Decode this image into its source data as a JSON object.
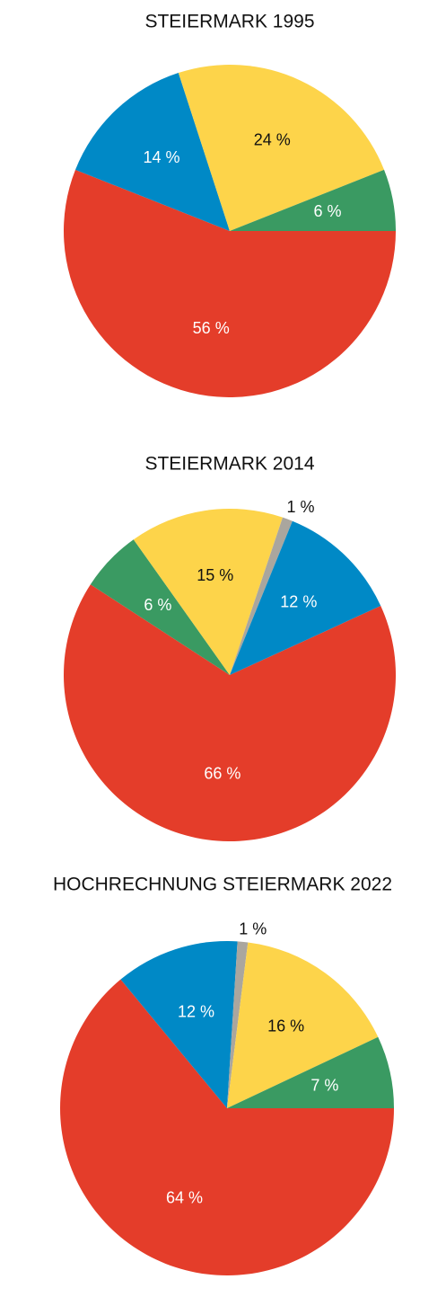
{
  "chart_data": [
    {
      "type": "pie",
      "title": "STEIERMARK 1995",
      "values": [
        56,
        14,
        24,
        6
      ],
      "value_labels": [
        "56 %",
        "14 %",
        "24 %",
        "6 %"
      ],
      "colors": [
        "#e43d2a",
        "#0089c6",
        "#fdd44a",
        "#3a9a62"
      ]
    },
    {
      "type": "pie",
      "title": "STEIERMARK 2014",
      "values": [
        66,
        6,
        15,
        1,
        12
      ],
      "value_labels": [
        "66 %",
        "6 %",
        "15 %",
        "1 %",
        "12 %"
      ],
      "colors": [
        "#e43d2a",
        "#3a9a62",
        "#fdd44a",
        "#aaa69e",
        "#0089c6"
      ]
    },
    {
      "type": "pie",
      "title": "HOCHRECHNUNG STEIERMARK 2022",
      "values": [
        64,
        12,
        1,
        16,
        7
      ],
      "value_labels": [
        "64 %",
        "12 %",
        "1 %",
        "16 %",
        "7 %"
      ],
      "colors": [
        "#e43d2a",
        "#0089c6",
        "#aaa69e",
        "#fdd44a",
        "#3a9a62"
      ]
    }
  ]
}
